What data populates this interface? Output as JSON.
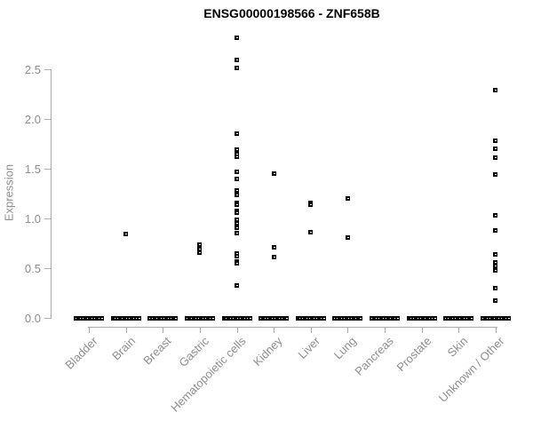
{
  "title": "ENSG00000198566 - ZNF658B",
  "colors": {
    "marker": "#000000",
    "axis_line": "#aaaaaa",
    "axis_text": "#8e8e8e",
    "title_text": "#000000",
    "background": "#ffffff"
  },
  "chart_data": {
    "type": "scatter",
    "subtype": "strip-plot-by-category",
    "title": "ENSG00000198566 - ZNF658B",
    "xlabel": "",
    "ylabel": "Expression",
    "ylim": [
      0.0,
      2.9
    ],
    "yticks": [
      0.0,
      0.5,
      1.0,
      1.5,
      2.0,
      2.5
    ],
    "ytick_labels": [
      "0.0",
      "0.5",
      "1.0",
      "1.5",
      "2.0",
      "2.5"
    ],
    "grid": false,
    "legend": "none",
    "marker": "small-black-square-open-center",
    "categories": [
      "Bladder",
      "Brain",
      "Breast",
      "Gastric",
      "Hematopoietic cells",
      "Kidney",
      "Liver",
      "Lung",
      "Pancreas",
      "Prostate",
      "Skin",
      "Unknown / Other"
    ],
    "series": [
      {
        "name": "Bladder",
        "values": [],
        "zero_cluster": true
      },
      {
        "name": "Brain",
        "values": [
          0.84
        ],
        "zero_cluster": true
      },
      {
        "name": "Breast",
        "values": [],
        "zero_cluster": true
      },
      {
        "name": "Gastric",
        "values": [
          0.74,
          0.69,
          0.66
        ],
        "zero_cluster": true
      },
      {
        "name": "Hematopoietic cells",
        "values": [
          2.82,
          2.59,
          2.51,
          1.85,
          1.69,
          1.65,
          1.62,
          1.47,
          1.4,
          1.28,
          1.24,
          1.16,
          1.14,
          1.08,
          1.06,
          0.99,
          0.95,
          0.91,
          0.85,
          0.65,
          0.62,
          0.57,
          0.55,
          0.33
        ],
        "zero_cluster": true
      },
      {
        "name": "Kidney",
        "values": [
          1.45,
          0.71,
          0.61
        ],
        "zero_cluster": true
      },
      {
        "name": "Liver",
        "values": [
          1.16,
          1.14,
          0.86
        ],
        "zero_cluster": true
      },
      {
        "name": "Lung",
        "values": [
          1.2,
          0.81
        ],
        "zero_cluster": true
      },
      {
        "name": "Pancreas",
        "values": [],
        "zero_cluster": true
      },
      {
        "name": "Prostate",
        "values": [],
        "zero_cluster": true
      },
      {
        "name": "Skin",
        "values": [],
        "zero_cluster": true
      },
      {
        "name": "Unknown / Other",
        "values": [
          2.29,
          1.78,
          1.7,
          1.61,
          1.44,
          1.03,
          0.88,
          0.64,
          0.56,
          0.52,
          0.48,
          0.3,
          0.17
        ],
        "zero_cluster": true
      }
    ],
    "zero_cluster_note": "every category shows a dense horizontal band of overlapping points at expression 0.0"
  }
}
